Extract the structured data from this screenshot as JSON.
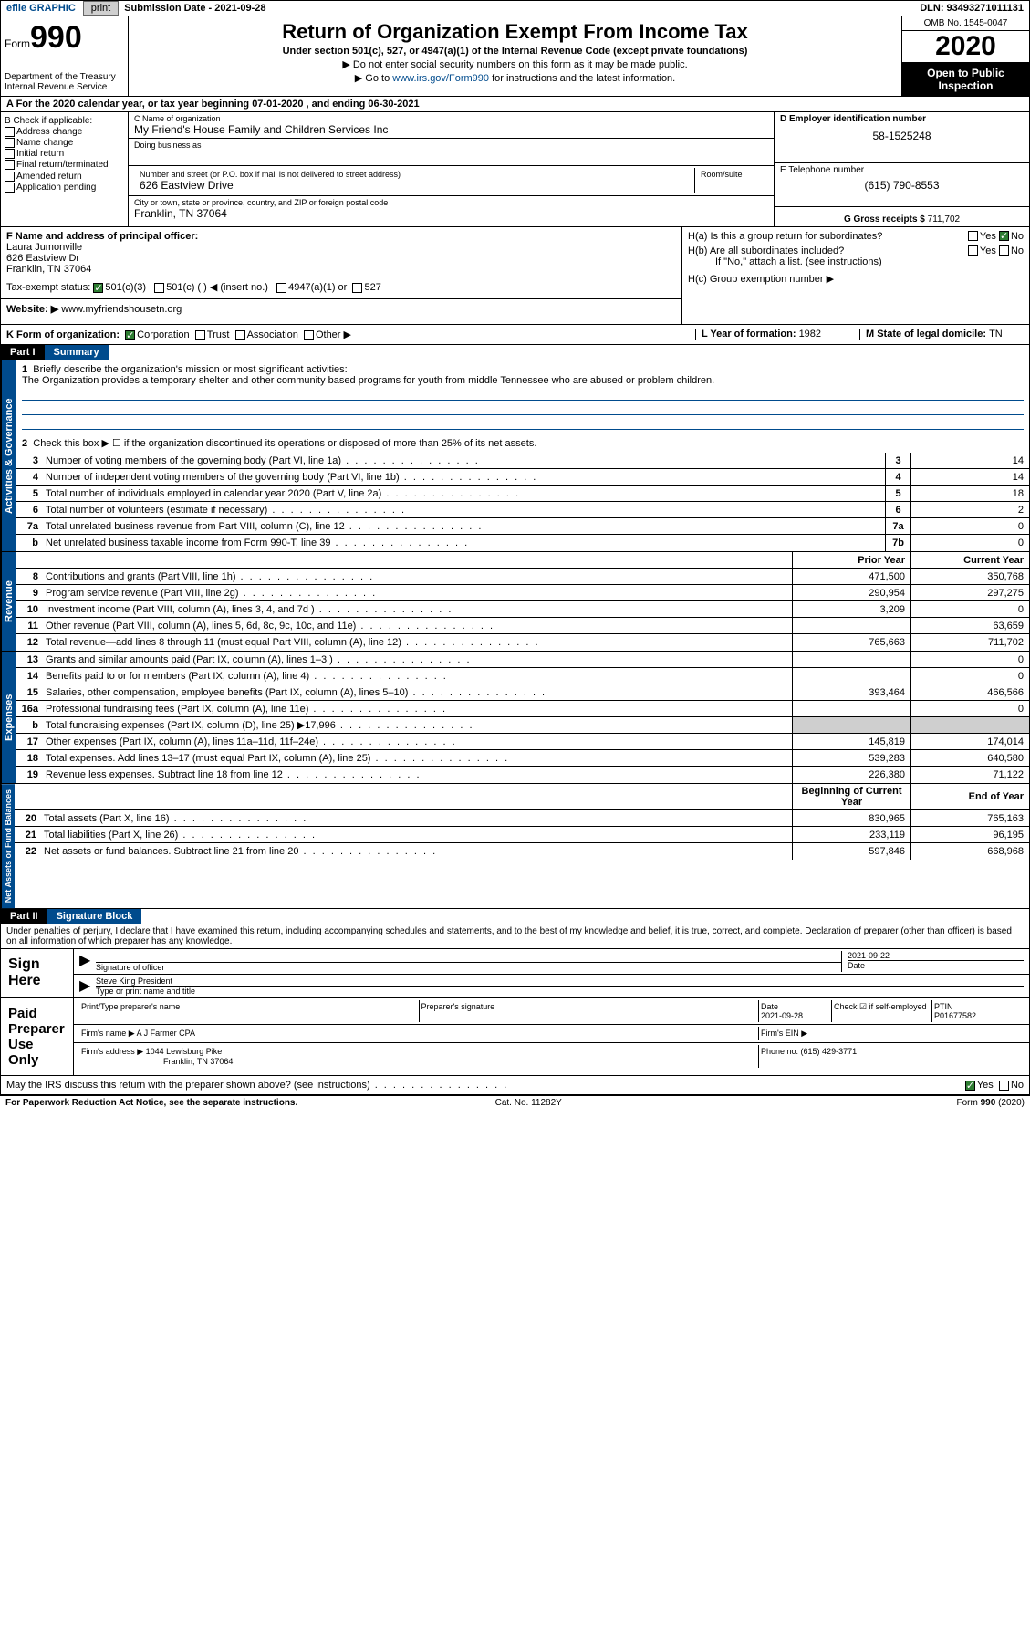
{
  "topbar": {
    "efile": "efile GRAPHIC",
    "print": "print",
    "sub_label": "Submission Date - ",
    "sub_date": "2021-09-28",
    "dln": "DLN: 93493271011131"
  },
  "header": {
    "form_word": "Form",
    "form_num": "990",
    "dept": "Department of the Treasury\nInternal Revenue Service",
    "title": "Return of Organization Exempt From Income Tax",
    "sub": "Under section 501(c), 527, or 4947(a)(1) of the Internal Revenue Code (except private foundations)",
    "note1": "▶ Do not enter social security numbers on this form as it may be made public.",
    "note2_pre": "▶ Go to ",
    "note2_link": "www.irs.gov/Form990",
    "note2_post": " for instructions and the latest information.",
    "omb": "OMB No. 1545-0047",
    "year": "2020",
    "insp": "Open to Public Inspection"
  },
  "row_a": "A For the 2020 calendar year, or tax year beginning 07-01-2020    , and ending 06-30-2021",
  "col_b": {
    "title": "B Check if applicable:",
    "items": [
      "Address change",
      "Name change",
      "Initial return",
      "Final return/terminated",
      "Amended return",
      "Application pending"
    ]
  },
  "col_c": {
    "name_lbl": "C Name of organization",
    "name": "My Friend's House Family and Children Services Inc",
    "dba_lbl": "Doing business as",
    "dba": "",
    "addr_lbl": "Number and street (or P.O. box if mail is not delivered to street address)",
    "room_lbl": "Room/suite",
    "addr": "626 Eastview Drive",
    "city_lbl": "City or town, state or province, country, and ZIP or foreign postal code",
    "city": "Franklin, TN  37064"
  },
  "col_d": {
    "ein_lbl": "D Employer identification number",
    "ein": "58-1525248",
    "tel_lbl": "E Telephone number",
    "tel": "(615) 790-8553",
    "gross_lbl": "G Gross receipts $ ",
    "gross": "711,702"
  },
  "row_f": {
    "f_lbl": "F  Name and address of principal officer:",
    "f_name": "Laura Jumonville",
    "f_addr1": "626 Eastview Dr",
    "f_addr2": "Franklin, TN  37064",
    "i_lbl": "Tax-exempt status:",
    "i_501c3": "501(c)(3)",
    "i_501c": "501(c) (  ) ◀ (insert no.)",
    "i_4947": "4947(a)(1) or",
    "i_527": "527",
    "j_lbl": "Website: ▶",
    "j_val": " www.myfriendshousetn.org",
    "ha": "H(a)  Is this a group return for subordinates?",
    "hb": "H(b)  Are all subordinates included?",
    "hb_note": "If \"No,\" attach a list. (see instructions)",
    "hc": "H(c)  Group exemption number ▶",
    "yes": "Yes",
    "no": "No"
  },
  "row_k": {
    "k": "K Form of organization:",
    "corp": "Corporation",
    "trust": "Trust",
    "assoc": "Association",
    "other": "Other ▶",
    "l": "L Year of formation: ",
    "l_val": "1982",
    "m": "M State of legal domicile: ",
    "m_val": "TN"
  },
  "part1": {
    "hdr": "Part I",
    "title": "Summary",
    "q1": "Briefly describe the organization's mission or most significant activities:",
    "mission": "The Organization provides a temporary shelter and other community based programs for youth from middle Tennessee who are abused or problem children.",
    "q2": "Check this box ▶ ☐  if the organization discontinued its operations or disposed of more than 25% of its net assets.",
    "lines_gov": [
      {
        "n": "3",
        "t": "Number of voting members of the governing body (Part VI, line 1a)",
        "box": "3",
        "v": "14"
      },
      {
        "n": "4",
        "t": "Number of independent voting members of the governing body (Part VI, line 1b)",
        "box": "4",
        "v": "14"
      },
      {
        "n": "5",
        "t": "Total number of individuals employed in calendar year 2020 (Part V, line 2a)",
        "box": "5",
        "v": "18"
      },
      {
        "n": "6",
        "t": "Total number of volunteers (estimate if necessary)",
        "box": "6",
        "v": "2"
      },
      {
        "n": "7a",
        "t": "Total unrelated business revenue from Part VIII, column (C), line 12",
        "box": "7a",
        "v": "0"
      },
      {
        "n": "b",
        "t": "Net unrelated business taxable income from Form 990-T, line 39",
        "box": "7b",
        "v": "0"
      }
    ],
    "col_py": "Prior Year",
    "col_cy": "Current Year",
    "lines_rev": [
      {
        "n": "8",
        "t": "Contributions and grants (Part VIII, line 1h)",
        "py": "471,500",
        "cy": "350,768"
      },
      {
        "n": "9",
        "t": "Program service revenue (Part VIII, line 2g)",
        "py": "290,954",
        "cy": "297,275"
      },
      {
        "n": "10",
        "t": "Investment income (Part VIII, column (A), lines 3, 4, and 7d )",
        "py": "3,209",
        "cy": "0"
      },
      {
        "n": "11",
        "t": "Other revenue (Part VIII, column (A), lines 5, 6d, 8c, 9c, 10c, and 11e)",
        "py": "",
        "cy": "63,659"
      },
      {
        "n": "12",
        "t": "Total revenue—add lines 8 through 11 (must equal Part VIII, column (A), line 12)",
        "py": "765,663",
        "cy": "711,702"
      }
    ],
    "lines_exp": [
      {
        "n": "13",
        "t": "Grants and similar amounts paid (Part IX, column (A), lines 1–3 )",
        "py": "",
        "cy": "0"
      },
      {
        "n": "14",
        "t": "Benefits paid to or for members (Part IX, column (A), line 4)",
        "py": "",
        "cy": "0"
      },
      {
        "n": "15",
        "t": "Salaries, other compensation, employee benefits (Part IX, column (A), lines 5–10)",
        "py": "393,464",
        "cy": "466,566"
      },
      {
        "n": "16a",
        "t": "Professional fundraising fees (Part IX, column (A), line 11e)",
        "py": "",
        "cy": "0"
      },
      {
        "n": "b",
        "t": "Total fundraising expenses (Part IX, column (D), line 25) ▶17,996",
        "py": "__shade__",
        "cy": "__shade__"
      },
      {
        "n": "17",
        "t": "Other expenses (Part IX, column (A), lines 11a–11d, 11f–24e)",
        "py": "145,819",
        "cy": "174,014"
      },
      {
        "n": "18",
        "t": "Total expenses. Add lines 13–17 (must equal Part IX, column (A), line 25)",
        "py": "539,283",
        "cy": "640,580"
      },
      {
        "n": "19",
        "t": "Revenue less expenses. Subtract line 18 from line 12",
        "py": "226,380",
        "cy": "71,122"
      }
    ],
    "col_boy": "Beginning of Current Year",
    "col_eoy": "End of Year",
    "lines_net": [
      {
        "n": "20",
        "t": "Total assets (Part X, line 16)",
        "py": "830,965",
        "cy": "765,163"
      },
      {
        "n": "21",
        "t": "Total liabilities (Part X, line 26)",
        "py": "233,119",
        "cy": "96,195"
      },
      {
        "n": "22",
        "t": "Net assets or fund balances. Subtract line 21 from line 20",
        "py": "597,846",
        "cy": "668,968"
      }
    ],
    "tab_gov": "Activities & Governance",
    "tab_rev": "Revenue",
    "tab_exp": "Expenses",
    "tab_net": "Net Assets or Fund Balances"
  },
  "part2": {
    "hdr": "Part II",
    "title": "Signature Block",
    "decl": "Under penalties of perjury, I declare that I have examined this return, including accompanying schedules and statements, and to the best of my knowledge and belief, it is true, correct, and complete. Declaration of preparer (other than officer) is based on all information of which preparer has any knowledge.",
    "sign_here": "Sign Here",
    "sig_officer": "Signature of officer",
    "sig_date": "Date",
    "sig_date_val": "2021-09-22",
    "sig_name": "Steve King President",
    "sig_name_lbl": "Type or print name and title",
    "paid": "Paid Preparer Use Only",
    "prep_name_lbl": "Print/Type preparer's name",
    "prep_sig_lbl": "Preparer's signature",
    "prep_date_lbl": "Date",
    "prep_date": "2021-09-28",
    "prep_check": "Check ☑ if self-employed",
    "ptin_lbl": "PTIN",
    "ptin": "P01677582",
    "firm_name_lbl": "Firm's name    ▶ ",
    "firm_name": "A J Farmer CPA",
    "firm_ein_lbl": "Firm's EIN ▶",
    "firm_addr_lbl": "Firm's address ▶ ",
    "firm_addr1": "1044 Lewisburg Pike",
    "firm_addr2": "Franklin, TN  37064",
    "phone_lbl": "Phone no. ",
    "phone": "(615) 429-3771",
    "irs_q": "May the IRS discuss this return with the preparer shown above? (see instructions)"
  },
  "footer": {
    "pra": "For Paperwork Reduction Act Notice, see the separate instructions.",
    "cat": "Cat. No. 11282Y",
    "form": "Form 990 (2020)"
  }
}
